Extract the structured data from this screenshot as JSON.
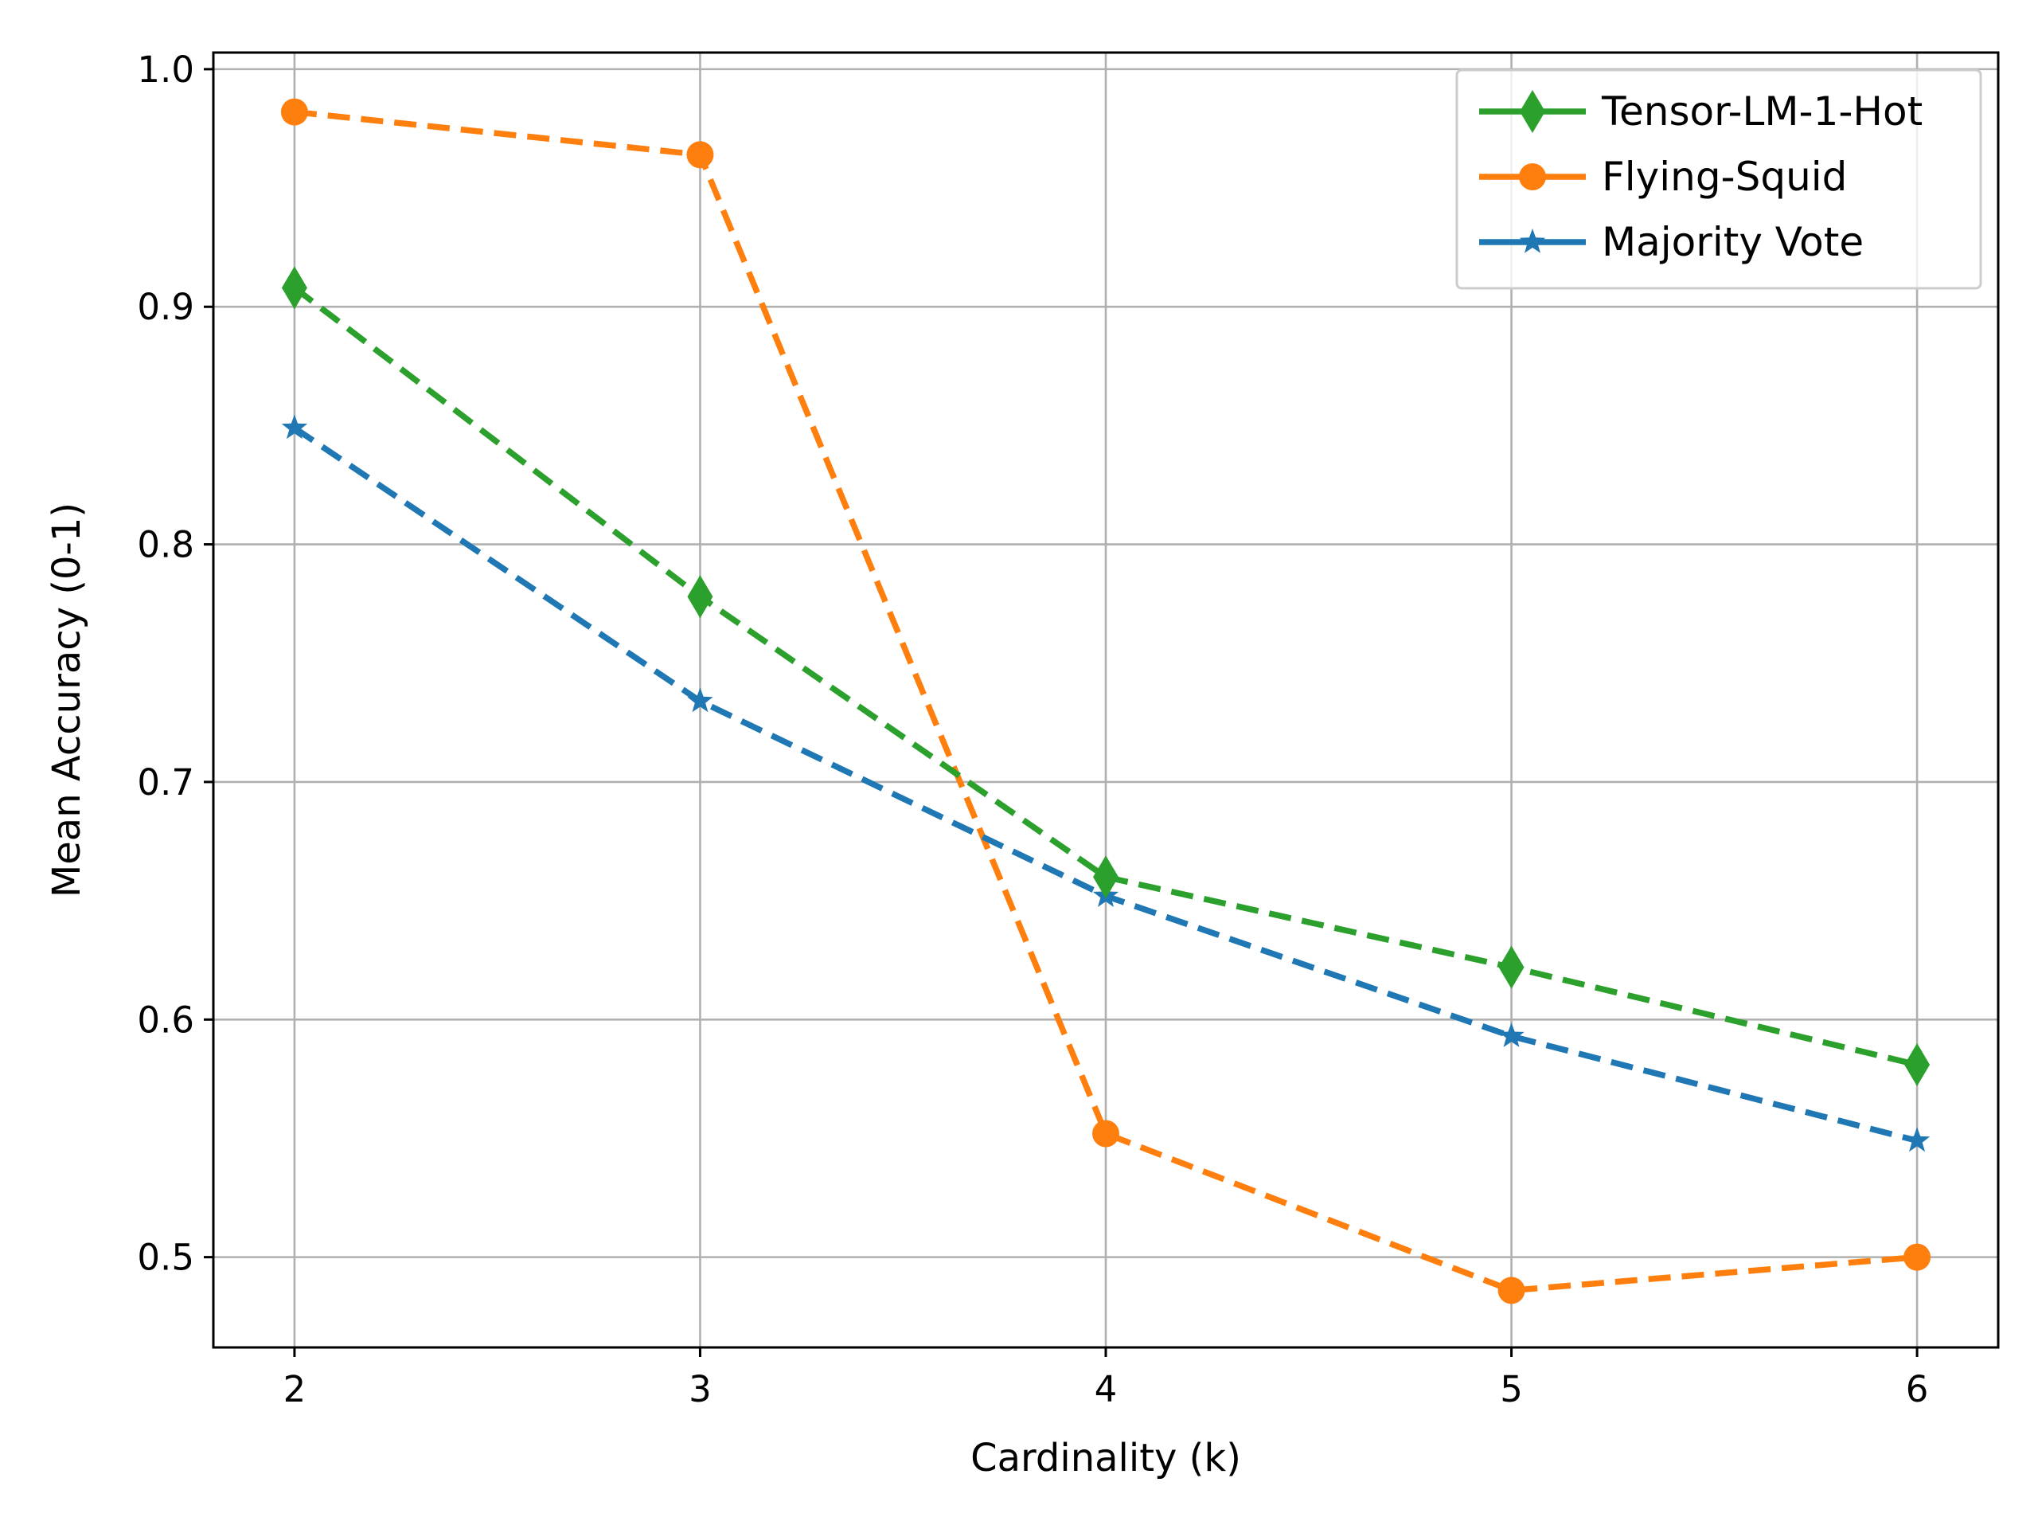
{
  "chart_data": {
    "type": "line",
    "title": "",
    "xlabel": "Cardinality (k)",
    "ylabel": "Mean Accuracy (0-1)",
    "x": [
      2,
      3,
      4,
      5,
      6
    ],
    "xlim": [
      1.8,
      6.2
    ],
    "ylim": [
      0.462,
      1.007
    ],
    "xticks": [
      "2",
      "3",
      "4",
      "5",
      "6"
    ],
    "yticks": [
      "0.5",
      "0.6",
      "0.7",
      "0.8",
      "0.9",
      "1.0"
    ],
    "grid": true,
    "legend_position": "top-right",
    "series": [
      {
        "name": "Tensor-LM-1-Hot",
        "values": [
          0.908,
          0.778,
          0.66,
          0.622,
          0.581
        ],
        "color": "#2ca02c",
        "marker": "diamond"
      },
      {
        "name": "Flying-Squid",
        "values": [
          0.982,
          0.964,
          0.552,
          0.486,
          0.5
        ],
        "color": "#ff7f0e",
        "marker": "circle"
      },
      {
        "name": "Majority Vote",
        "values": [
          0.849,
          0.734,
          0.652,
          0.593,
          0.549
        ],
        "color": "#1f77b4",
        "marker": "star"
      }
    ]
  }
}
